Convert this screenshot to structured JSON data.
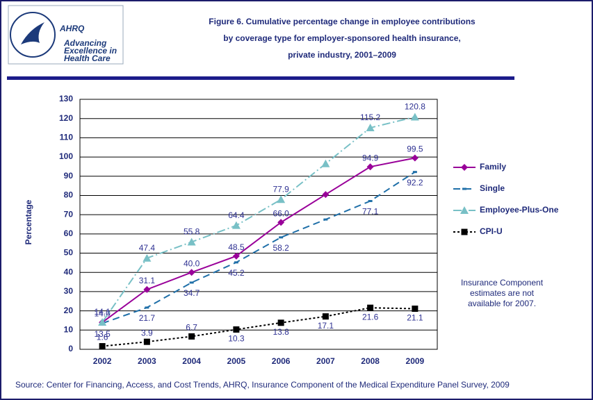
{
  "logo": {
    "name": "AHRQ",
    "tagline": [
      "Advancing",
      "Excellence in",
      "Health Care"
    ]
  },
  "chart_data": {
    "type": "line",
    "title": [
      "Figure 6. Cumulative percentage change in employee contributions",
      "by coverage type for employer-sponsored health insurance,",
      "private industry, 2001–2009"
    ],
    "y_label": "Percentage",
    "categories": [
      "2002",
      "2003",
      "2004",
      "2005",
      "2006",
      "2007",
      "2008",
      "2009"
    ],
    "ylim": [
      0,
      130
    ],
    "yticks": [
      0,
      10,
      20,
      30,
      40,
      50,
      60,
      70,
      80,
      90,
      100,
      110,
      120,
      130
    ],
    "grid": true,
    "series": [
      {
        "name": "Family",
        "color": "#990099",
        "marker": "diamond",
        "dash": "none",
        "values": [
          14.0,
          31.1,
          40.0,
          48.5,
          66.0,
          80.5,
          94.9,
          99.5
        ],
        "value_labels": [
          "14.0",
          "31.1",
          "40.0",
          "48.5",
          "66.0",
          null,
          "94.9",
          "99.5"
        ]
      },
      {
        "name": "Single",
        "color": "#1f6fa8",
        "marker": "dash",
        "dash": "10 6",
        "values": [
          13.5,
          21.7,
          34.7,
          45.2,
          58.2,
          67.5,
          77.1,
          92.2
        ],
        "value_labels": [
          "13.5",
          "21.7",
          "34.7",
          "45.2",
          "58.2",
          null,
          "77.1",
          "92.2"
        ]
      },
      {
        "name": "Employee-Plus-One",
        "color": "#78c0c6",
        "marker": "triangle",
        "dash": "12 4 2 4",
        "values": [
          14.1,
          47.4,
          55.8,
          64.4,
          77.9,
          96.5,
          115.2,
          120.8
        ],
        "value_labels": [
          "14.1",
          "47.4",
          "55.8",
          "64.4",
          "77.9",
          null,
          "115.2",
          "120.8"
        ]
      },
      {
        "name": "CPI-U",
        "color": "#000000",
        "marker": "square",
        "dash": "3 3",
        "values": [
          1.6,
          3.9,
          6.7,
          10.3,
          13.8,
          17.1,
          21.6,
          21.1
        ],
        "value_labels": [
          "1.6",
          "3.9",
          "6.7",
          "10.3",
          "13.8",
          "17.1",
          "21.6",
          "21.1"
        ]
      }
    ],
    "annotation": [
      "Insurance Component",
      "estimates are not",
      "available for 2007."
    ],
    "source": "Source: Center for Financing, Access, and Cost Trends, AHRQ, Insurance Component of the Medical Expenditure Panel Survey, 2009"
  }
}
